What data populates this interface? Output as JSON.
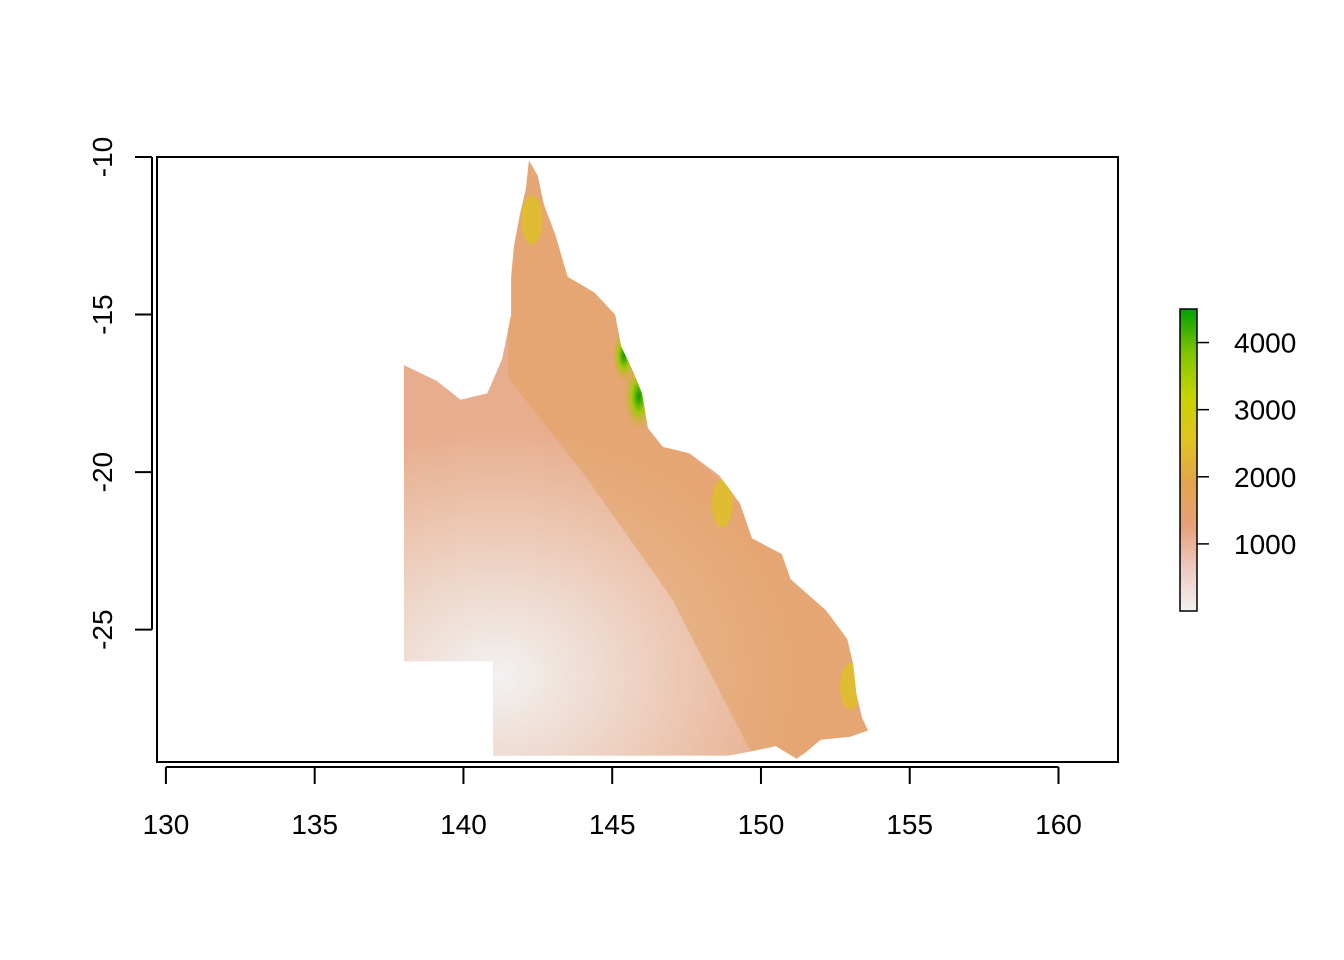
{
  "map": {
    "x_axis": {
      "range": [
        129.7,
        162.0
      ],
      "ticks": [
        130,
        135,
        140,
        145,
        150,
        155,
        160
      ],
      "tick_labels": [
        "130",
        "135",
        "140",
        "145",
        "150",
        "155",
        "160"
      ]
    },
    "y_axis": {
      "range": [
        -29.2,
        -10.0
      ],
      "ticks": [
        -10,
        -15,
        -20,
        -25
      ],
      "tick_labels": [
        "-10",
        "-15",
        "-20",
        "-25"
      ]
    },
    "region_outline": [
      [
        142.2,
        -10.1
      ],
      [
        142.5,
        -10.6
      ],
      [
        142.7,
        -11.5
      ],
      [
        143.1,
        -12.5
      ],
      [
        143.5,
        -13.8
      ],
      [
        144.4,
        -14.3
      ],
      [
        145.1,
        -15.0
      ],
      [
        145.3,
        -16.0
      ],
      [
        145.7,
        -16.8
      ],
      [
        146.0,
        -17.5
      ],
      [
        146.2,
        -18.6
      ],
      [
        146.7,
        -19.2
      ],
      [
        147.6,
        -19.4
      ],
      [
        148.6,
        -20.1
      ],
      [
        149.3,
        -21.0
      ],
      [
        149.7,
        -22.1
      ],
      [
        150.7,
        -22.6
      ],
      [
        151.0,
        -23.4
      ],
      [
        152.2,
        -24.4
      ],
      [
        152.9,
        -25.3
      ],
      [
        153.1,
        -26.1
      ],
      [
        153.2,
        -27.0
      ],
      [
        153.4,
        -27.8
      ],
      [
        153.6,
        -28.2
      ],
      [
        153.0,
        -28.4
      ],
      [
        152.0,
        -28.5
      ],
      [
        151.5,
        -28.9
      ],
      [
        151.2,
        -29.1
      ],
      [
        150.5,
        -28.7
      ],
      [
        149.5,
        -28.9
      ],
      [
        148.9,
        -29.0
      ],
      [
        141.0,
        -29.0
      ],
      [
        141.0,
        -26.0
      ],
      [
        138.0,
        -26.0
      ],
      [
        138.0,
        -16.6
      ],
      [
        139.1,
        -17.1
      ],
      [
        139.9,
        -17.7
      ],
      [
        140.8,
        -17.5
      ],
      [
        141.3,
        -16.4
      ],
      [
        141.6,
        -15.0
      ],
      [
        141.6,
        -13.8
      ],
      [
        141.7,
        -12.8
      ],
      [
        141.9,
        -11.8
      ],
      [
        142.1,
        -11.0
      ]
    ],
    "wet_areas": [
      {
        "lon": 145.9,
        "lat": -17.6,
        "value": 4400
      },
      {
        "lon": 145.4,
        "lat": -16.3,
        "value": 3000
      },
      {
        "lon": 142.3,
        "lat": -12.0,
        "value": 2100
      },
      {
        "lon": 148.7,
        "lat": -21.0,
        "value": 2000
      },
      {
        "lon": 153.0,
        "lat": -26.8,
        "value": 1900
      }
    ]
  },
  "legend": {
    "min": 0,
    "max": 4500,
    "ticks": [
      1000,
      2000,
      3000,
      4000
    ],
    "tick_labels": [
      "1000",
      "2000",
      "3000",
      "4000"
    ],
    "colors": [
      "#f2f2f2",
      "#eec9c0",
      "#e6a078",
      "#e2a54c",
      "#e0c41e",
      "#c5d400",
      "#7fc400",
      "#00a000"
    ]
  }
}
